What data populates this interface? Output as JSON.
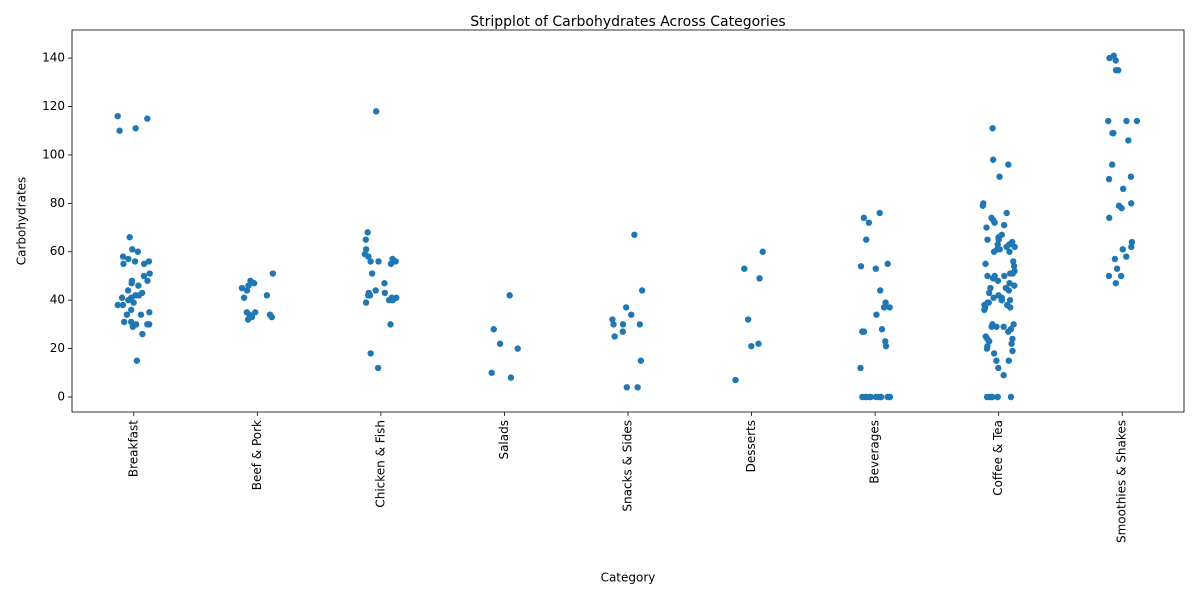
{
  "chart_data": {
    "type": "strip",
    "title": "Stripplot of Carbohydrates Across Categories",
    "x_label": "Category",
    "y_label": "Carbohydrates",
    "categories": [
      "Breakfast",
      "Beef & Pork",
      "Chicken & Fish",
      "Salads",
      "Snacks & Sides",
      "Desserts",
      "Beverages",
      "Coffee & Tea",
      "Smoothies & Shakes"
    ],
    "values": [
      [
        116,
        115,
        110,
        111,
        66,
        61,
        60,
        58,
        57,
        56,
        56,
        55,
        55,
        51,
        50,
        48,
        48,
        47,
        46,
        44,
        43,
        42,
        42,
        41,
        41,
        40,
        39,
        38,
        38,
        36,
        35,
        34,
        34,
        31,
        31,
        30,
        30,
        30,
        29,
        26,
        15
      ],
      [
        51,
        48,
        47,
        46,
        45,
        44,
        42,
        41,
        35,
        35,
        34,
        34,
        33,
        32,
        33
      ],
      [
        118,
        68,
        65,
        61,
        59,
        58,
        57,
        56,
        56,
        56,
        55,
        51,
        47,
        44,
        43,
        43,
        42,
        42,
        41,
        41,
        40,
        40,
        39,
        30,
        18,
        12
      ],
      [
        42,
        28,
        22,
        20,
        10,
        8
      ],
      [
        67,
        44,
        37,
        34,
        32,
        30,
        30,
        30,
        27,
        25,
        15,
        4,
        4
      ],
      [
        60,
        53,
        49,
        32,
        22,
        21,
        7
      ],
      [
        76,
        74,
        72,
        65,
        55,
        54,
        53,
        44,
        39,
        37,
        37,
        34,
        28,
        27,
        27,
        23,
        21,
        12,
        0,
        0,
        0,
        0,
        0,
        0,
        0,
        0,
        0,
        0,
        0,
        0
      ],
      [
        111,
        98,
        96,
        91,
        80,
        79,
        76,
        74,
        73,
        72,
        71,
        70,
        67,
        66,
        65,
        65,
        64,
        63,
        63,
        62,
        62,
        61,
        61,
        60,
        60,
        56,
        55,
        54,
        52,
        51,
        51,
        50,
        50,
        50,
        49,
        48,
        47,
        46,
        45,
        45,
        44,
        43,
        42,
        41,
        41,
        40,
        40,
        40,
        39,
        39,
        38,
        38,
        37,
        37,
        36,
        30,
        30,
        29,
        29,
        29,
        28,
        27,
        25,
        24,
        24,
        23,
        22,
        21,
        20,
        19,
        18,
        15,
        15,
        12,
        9,
        0,
        0,
        0,
        0,
        0,
        0,
        0
      ],
      [
        141,
        140,
        139,
        135,
        135,
        114,
        114,
        114,
        109,
        109,
        106,
        96,
        91,
        90,
        86,
        80,
        79,
        78,
        74,
        64,
        62,
        61,
        58,
        57,
        53,
        50,
        50,
        47
      ]
    ],
    "color": "#1f77b4",
    "ylim": [
      -6.2,
      151.6
    ],
    "yticks": [
      0,
      20,
      40,
      60,
      80,
      100,
      120,
      140
    ]
  }
}
